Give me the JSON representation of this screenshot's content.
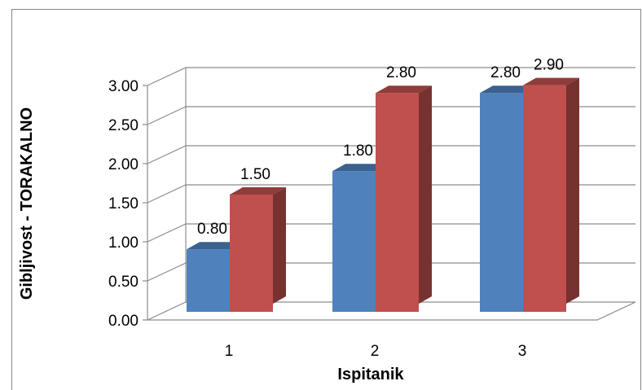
{
  "chart_data": {
    "type": "bar",
    "title": "",
    "xlabel": "Ispitanik",
    "ylabel": "Gibljivost - TORAKALNO",
    "categories": [
      "1",
      "2",
      "3"
    ],
    "series": [
      {
        "values": [
          0.8,
          1.8,
          2.8
        ],
        "color": "#4F81BD",
        "label_texts": [
          "0.80",
          "1.80",
          "2.80"
        ]
      },
      {
        "values": [
          1.5,
          2.8,
          2.9
        ],
        "color": "#C0504D",
        "label_texts": [
          "1.50",
          "2.80",
          "2.90"
        ]
      }
    ],
    "ylim": [
      0,
      3
    ],
    "yticks": [
      0,
      0.5,
      1.0,
      1.5,
      2.0,
      2.5,
      3.0
    ],
    "ytick_labels": [
      "0.00",
      "0.50",
      "1.00",
      "1.50",
      "2.00",
      "2.50",
      "3.00"
    ],
    "grid": true,
    "legend": "none",
    "style": "3d-clustered-column"
  }
}
